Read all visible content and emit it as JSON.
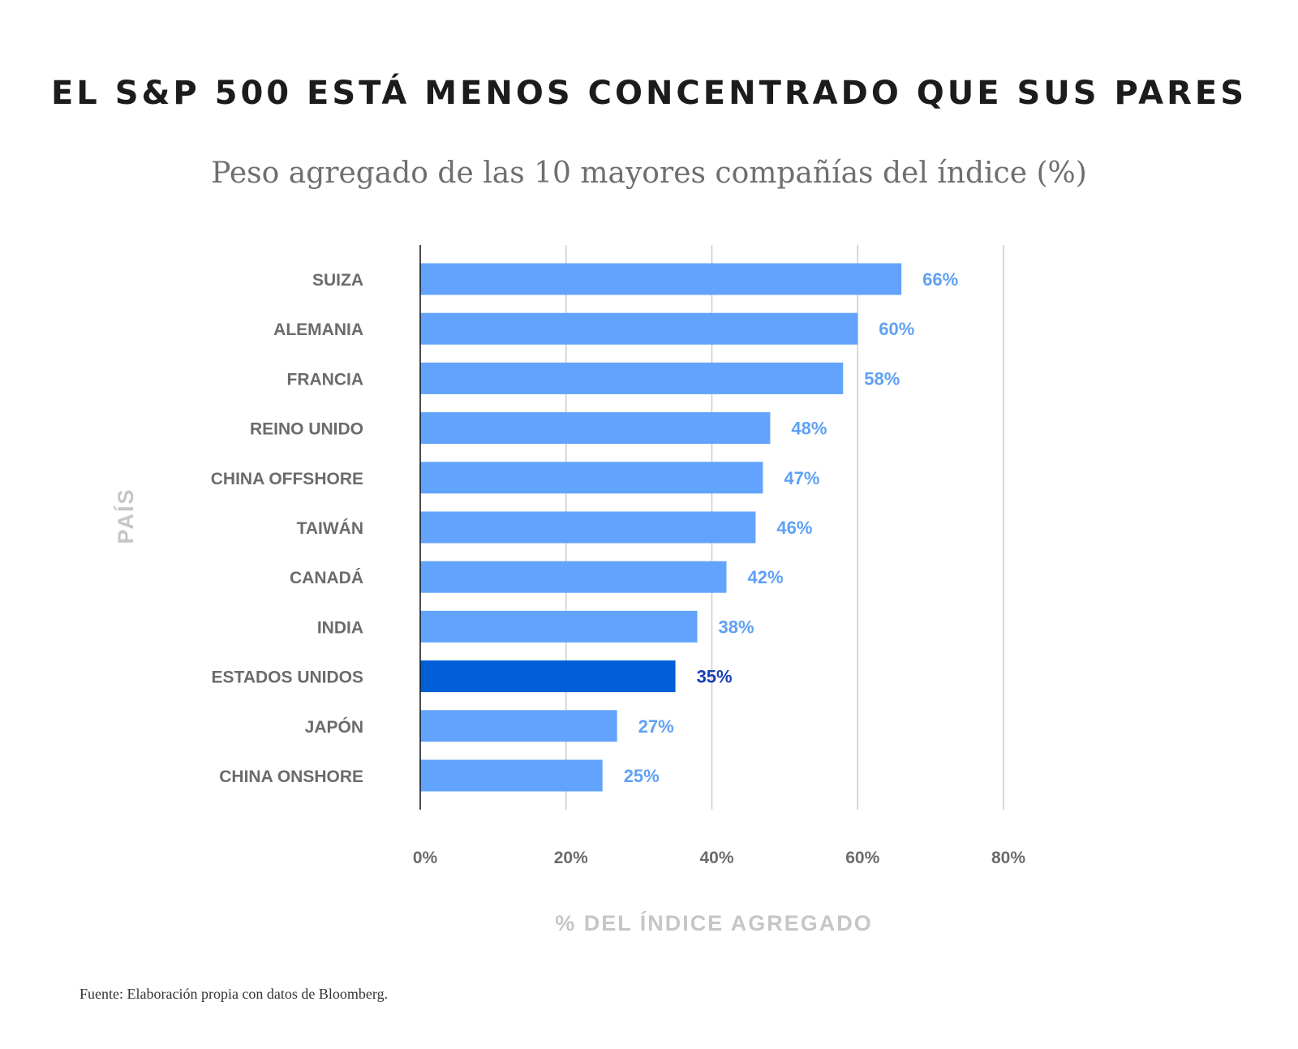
{
  "title": "EL S&P 500 ESTÁ MENOS CONCENTRADO QUE SUS PARES",
  "subtitle": "Peso agregado de las 10 mayores compañías del índice (%)",
  "footer": "Fuente: Elaboración propia con datos de Bloomberg.",
  "colors": {
    "bar": "#62a3fd",
    "bar_highlight": "#005ed6",
    "label": "#5fa1f5",
    "label_highlight": "#1a3fb4",
    "grid": "#cccccc",
    "axis": "#111111"
  },
  "chart_data": {
    "type": "bar",
    "orientation": "horizontal",
    "categories": [
      "SUIZA",
      "ALEMANIA",
      "FRANCIA",
      "REINO UNIDO",
      "CHINA OFFSHORE",
      "TAIWÁN",
      "CANADÁ",
      "INDIA",
      "ESTADOS UNIDOS",
      "JAPÓN",
      "CHINA ONSHORE"
    ],
    "values": [
      66,
      60,
      58,
      48,
      47,
      46,
      42,
      38,
      35,
      27,
      25
    ],
    "value_labels": [
      "66%",
      "60%",
      "58%",
      "48%",
      "47%",
      "46%",
      "42%",
      "38%",
      "35%",
      "27%",
      "25%"
    ],
    "highlight": "ESTADOS UNIDOS",
    "xlim": [
      0,
      80
    ],
    "xticks": [
      0,
      20,
      40,
      60,
      80
    ],
    "xtick_labels": [
      "0%",
      "20%",
      "40%",
      "60%",
      "80%"
    ],
    "xlabel": "% DEL ÍNDICE AGREGADO",
    "ylabel": "PAÍS",
    "grid": true
  }
}
